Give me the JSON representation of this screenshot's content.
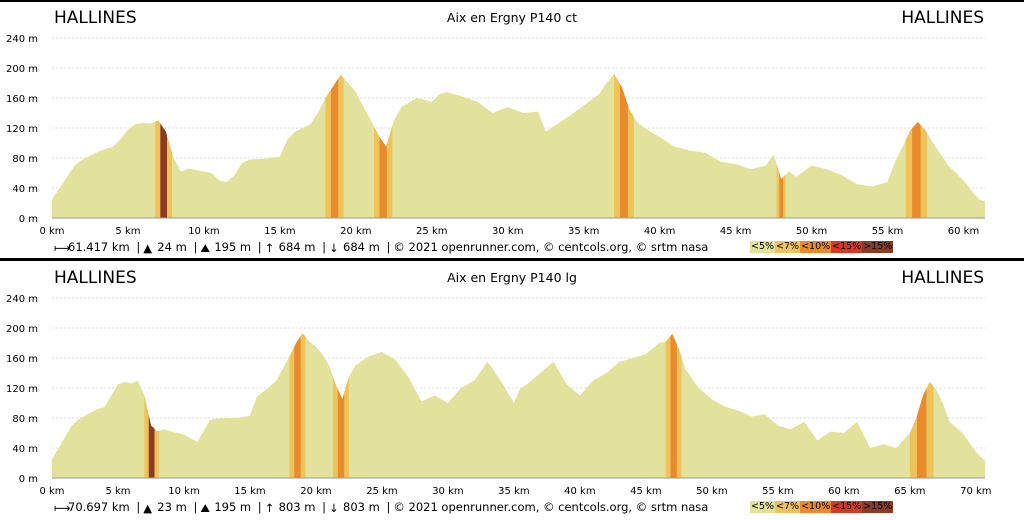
{
  "colors": {
    "lt5": "#e3e29c",
    "lt7": "#eec35a",
    "lt10": "#e98a2c",
    "lt15": "#d43a20",
    "gt15": "#8c3b22",
    "grid": "#dcdcdc"
  },
  "legend": [
    "<5%",
    "<7%",
    "<10%",
    "<15%",
    ">15%"
  ],
  "icons": {
    "distance": "distance-icon",
    "min": "min-altitude-icon",
    "max": "max-altitude-icon",
    "gain": "elevation-gain-icon",
    "loss": "elevation-loss-icon"
  },
  "profiles": [
    {
      "start": "HALLINES",
      "end": "HALLINES",
      "title": "Aix en Ergny P140 ct",
      "footer": {
        "distance": "61.417 km",
        "min_alt": "24 m",
        "max_alt": "195 m",
        "gain": "684 m",
        "loss": "684 m",
        "credits": "© 2021 openrunner.com, © centcols.org, © srtm nasa"
      },
      "chart_data": {
        "type": "area",
        "xlabel": "",
        "ylabel": "",
        "xlim": [
          0,
          61.417
        ],
        "ylim": [
          0,
          240
        ],
        "xticks": [
          0,
          5,
          10,
          15,
          20,
          25,
          30,
          35,
          40,
          45,
          50,
          55,
          60
        ],
        "xtick_labels": [
          "0 km",
          "5 km",
          "10 km",
          "15 km",
          "20 km",
          "25 km",
          "30 km",
          "35 km",
          "40 km",
          "45 km",
          "50 km",
          "55 km",
          "60 km"
        ],
        "yticks": [
          0,
          40,
          80,
          120,
          160,
          200,
          240
        ],
        "ytick_labels": [
          "0 m",
          "40 m",
          "80 m",
          "120 m",
          "160 m",
          "200 m",
          "240 m"
        ],
        "grid": true,
        "x": [
          0,
          0.5,
          1,
          1.5,
          2,
          2.5,
          3,
          3.5,
          4,
          4.5,
          5,
          5.5,
          6,
          6.5,
          7,
          7.5,
          8,
          8.5,
          9,
          10,
          10.5,
          11,
          11.5,
          12,
          12.5,
          13,
          14,
          15,
          15.5,
          16,
          16.5,
          17,
          17.5,
          18,
          18.5,
          19,
          19.5,
          20,
          20.5,
          21,
          21.5,
          22,
          22.5,
          23,
          24,
          25,
          25.5,
          26,
          27,
          28,
          29,
          30,
          31,
          32,
          32.5,
          33,
          34,
          35,
          36,
          36.5,
          37,
          37.5,
          38,
          38.5,
          39,
          40,
          41,
          42,
          43,
          44,
          45,
          46,
          47,
          47.5,
          48,
          48.5,
          49,
          50,
          51,
          52,
          53,
          54,
          55,
          55.5,
          56,
          56.5,
          57,
          57.5,
          58,
          59,
          60,
          61,
          61.417
        ],
        "y": [
          25,
          40,
          55,
          70,
          78,
          83,
          88,
          92,
          95,
          105,
          118,
          125,
          127,
          126,
          130,
          115,
          80,
          62,
          66,
          62,
          60,
          50,
          48,
          57,
          73,
          78,
          79,
          82,
          105,
          115,
          120,
          125,
          140,
          160,
          175,
          191,
          180,
          168,
          148,
          130,
          110,
          95,
          130,
          148,
          160,
          155,
          165,
          168,
          162,
          155,
          140,
          148,
          140,
          142,
          115,
          122,
          135,
          150,
          165,
          180,
          192,
          175,
          145,
          128,
          120,
          108,
          95,
          90,
          87,
          75,
          72,
          65,
          70,
          85,
          52,
          62,
          55,
          70,
          65,
          57,
          45,
          42,
          48,
          75,
          95,
          117,
          128,
          117,
          100,
          70,
          50,
          25,
          22
        ],
        "climbs": [
          {
            "x0": 6.8,
            "x1": 7.9,
            "grade": ">15%"
          },
          {
            "x0": 18.0,
            "x1": 19.2,
            "grade": "<10%"
          },
          {
            "x0": 21.2,
            "x1": 22.4,
            "grade": "<10%"
          },
          {
            "x0": 37.0,
            "x1": 38.3,
            "grade": "<10%"
          },
          {
            "x0": 47.7,
            "x1": 48.3,
            "grade": "<10%"
          },
          {
            "x0": 56.2,
            "x1": 57.6,
            "grade": "<10%"
          }
        ]
      }
    },
    {
      "start": "HALLINES",
      "end": "HALLINES",
      "title": "Aix en Ergny P140 lg",
      "footer": {
        "distance": "70.697 km",
        "min_alt": "23 m",
        "max_alt": "195 m",
        "gain": "803 m",
        "loss": "803 m",
        "credits": "© 2021 openrunner.com, © centcols.org, © srtm nasa"
      },
      "chart_data": {
        "type": "area",
        "xlabel": "",
        "ylabel": "",
        "xlim": [
          0,
          70.697
        ],
        "ylim": [
          0,
          240
        ],
        "xticks": [
          0,
          5,
          10,
          15,
          20,
          25,
          30,
          35,
          40,
          45,
          50,
          55,
          60,
          65,
          70
        ],
        "xtick_labels": [
          "0 km",
          "5 km",
          "10 km",
          "15 km",
          "20 km",
          "25 km",
          "30 km",
          "35 km",
          "40 km",
          "45 km",
          "50 km",
          "55 km",
          "60 km",
          "65 km",
          "70 km"
        ],
        "yticks": [
          0,
          40,
          80,
          120,
          160,
          200,
          240
        ],
        "ytick_labels": [
          "0 m",
          "40 m",
          "80 m",
          "120 m",
          "160 m",
          "200 m",
          "240 m"
        ],
        "grid": true,
        "x": [
          0,
          0.5,
          1,
          1.5,
          2,
          2.5,
          3,
          3.5,
          4,
          4.5,
          5,
          5.5,
          6,
          6.5,
          7,
          7.5,
          8,
          8.5,
          9,
          10,
          11,
          12,
          13,
          14,
          15,
          15.5,
          16,
          17,
          18,
          18.5,
          19,
          19.5,
          20,
          20.5,
          21,
          21.5,
          22,
          22.5,
          23,
          24,
          25,
          26,
          27,
          28,
          29,
          30,
          31,
          32,
          33,
          34,
          35,
          35.5,
          36,
          37,
          38,
          39,
          40,
          41,
          42,
          43,
          44,
          45,
          46,
          46.5,
          47,
          47.5,
          48,
          49,
          50,
          51,
          52,
          53,
          54,
          55,
          56,
          57,
          58,
          59,
          60,
          61,
          62,
          63,
          64,
          65,
          65.5,
          66,
          66.5,
          67,
          67.5,
          68,
          69,
          70,
          70.697
        ],
        "y": [
          25,
          40,
          55,
          70,
          78,
          83,
          88,
          92,
          95,
          110,
          125,
          128,
          126,
          130,
          110,
          70,
          62,
          65,
          62,
          58,
          48,
          78,
          80,
          80,
          83,
          108,
          115,
          130,
          162,
          180,
          193,
          182,
          175,
          165,
          150,
          125,
          105,
          135,
          150,
          162,
          168,
          158,
          135,
          102,
          110,
          100,
          120,
          130,
          155,
          130,
          100,
          120,
          125,
          140,
          155,
          125,
          110,
          130,
          140,
          155,
          160,
          165,
          180,
          182,
          192,
          172,
          145,
          120,
          105,
          95,
          90,
          82,
          85,
          70,
          65,
          75,
          50,
          62,
          60,
          75,
          40,
          45,
          40,
          60,
          80,
          110,
          128,
          118,
          100,
          75,
          60,
          35,
          23
        ],
        "climbs": [
          {
            "x0": 7.0,
            "x1": 8.1,
            "grade": ">15%"
          },
          {
            "x0": 18.0,
            "x1": 19.2,
            "grade": "<10%"
          },
          {
            "x0": 21.3,
            "x1": 22.5,
            "grade": "<10%"
          },
          {
            "x0": 46.5,
            "x1": 47.7,
            "grade": "<10%"
          },
          {
            "x0": 65.0,
            "x1": 66.8,
            "grade": "<10%"
          }
        ]
      }
    }
  ]
}
